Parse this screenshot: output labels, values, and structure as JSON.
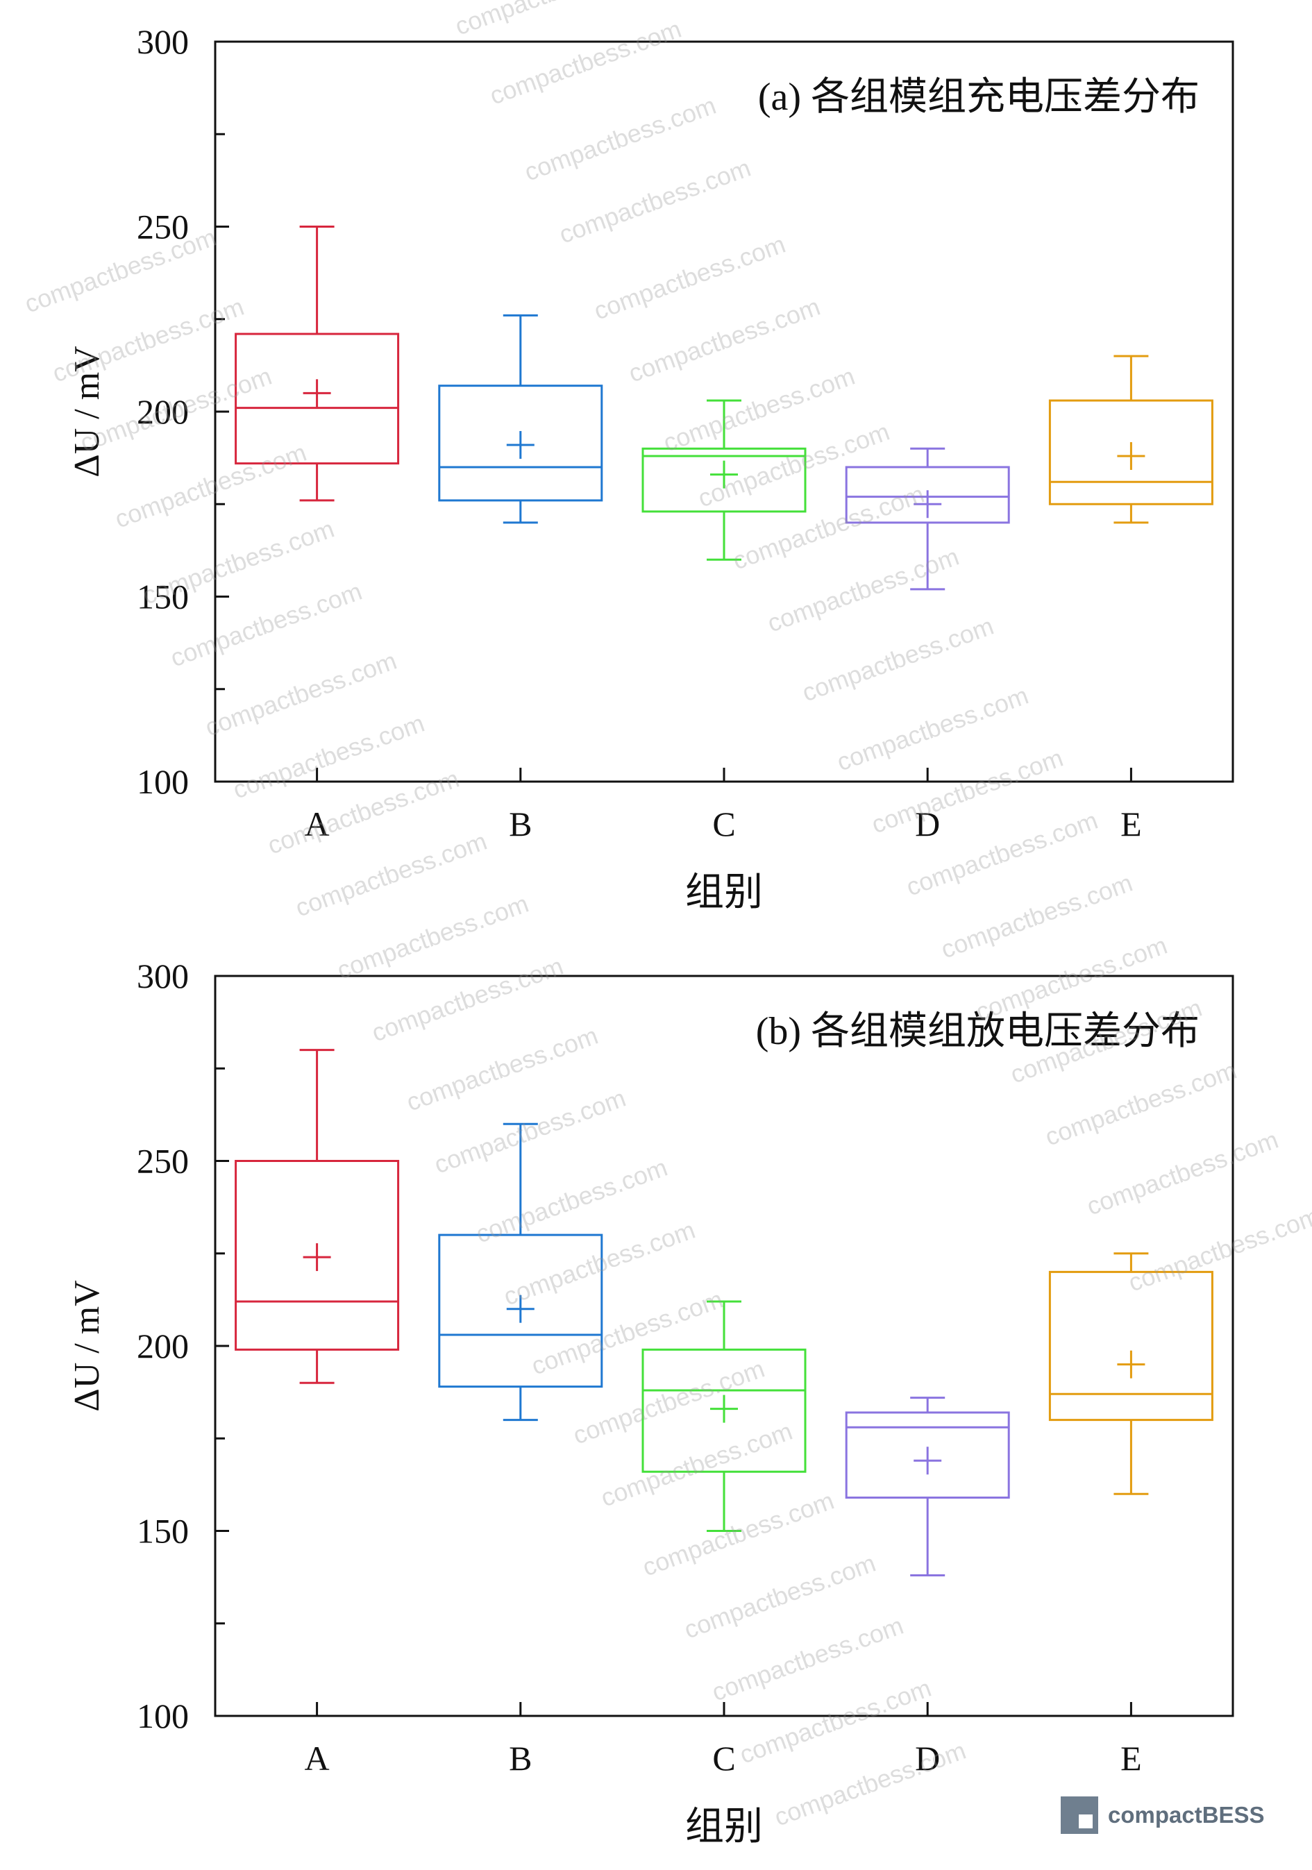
{
  "chart_data": [
    {
      "type": "box",
      "title": "(a) 各组模组充电压差分布",
      "xlabel": "组别",
      "ylabel": "ΔU / mV",
      "ylim": [
        100,
        300
      ],
      "yticks": [
        100,
        150,
        200,
        250,
        300
      ],
      "categories": [
        "A",
        "B",
        "C",
        "D",
        "E"
      ],
      "colors": [
        "#d7263d",
        "#1f78d1",
        "#44e03a",
        "#8a74e0",
        "#e39c10"
      ],
      "boxes": [
        {
          "category": "A",
          "whisker_low": 176,
          "q1": 186,
          "median": 201,
          "q3": 221,
          "whisker_high": 250,
          "mean": 205
        },
        {
          "category": "B",
          "whisker_low": 170,
          "q1": 176,
          "median": 185,
          "q3": 207,
          "whisker_high": 226,
          "mean": 191
        },
        {
          "category": "C",
          "whisker_low": 160,
          "q1": 173,
          "median": 188,
          "q3": 190,
          "whisker_high": 203,
          "mean": 183
        },
        {
          "category": "D",
          "whisker_low": 152,
          "q1": 170,
          "median": 177,
          "q3": 185,
          "whisker_high": 190,
          "mean": 175
        },
        {
          "category": "E",
          "whisker_low": 170,
          "q1": 175,
          "median": 181,
          "q3": 203,
          "whisker_high": 215,
          "mean": 188
        }
      ]
    },
    {
      "type": "box",
      "title": "(b) 各组模组放电压差分布",
      "xlabel": "组别",
      "ylabel": "ΔU / mV",
      "ylim": [
        100,
        300
      ],
      "yticks": [
        100,
        150,
        200,
        250,
        300
      ],
      "categories": [
        "A",
        "B",
        "C",
        "D",
        "E"
      ],
      "colors": [
        "#d7263d",
        "#1f78d1",
        "#44e03a",
        "#8a74e0",
        "#e39c10"
      ],
      "boxes": [
        {
          "category": "A",
          "whisker_low": 190,
          "q1": 199,
          "median": 212,
          "q3": 250,
          "whisker_high": 280,
          "mean": 224
        },
        {
          "category": "B",
          "whisker_low": 180,
          "q1": 189,
          "median": 203,
          "q3": 230,
          "whisker_high": 260,
          "mean": 210
        },
        {
          "category": "C",
          "whisker_low": 150,
          "q1": 166,
          "median": 188,
          "q3": 199,
          "whisker_high": 212,
          "mean": 183
        },
        {
          "category": "D",
          "whisker_low": 138,
          "q1": 159,
          "median": 178,
          "q3": 182,
          "whisker_high": 186,
          "mean": 169
        },
        {
          "category": "E",
          "whisker_low": 160,
          "q1": 180,
          "median": 187,
          "q3": 220,
          "whisker_high": 225,
          "mean": 195
        }
      ]
    }
  ],
  "watermark": "compactbess.com",
  "brand": {
    "name": "compactBESS",
    "color": "#5f6e7d"
  }
}
